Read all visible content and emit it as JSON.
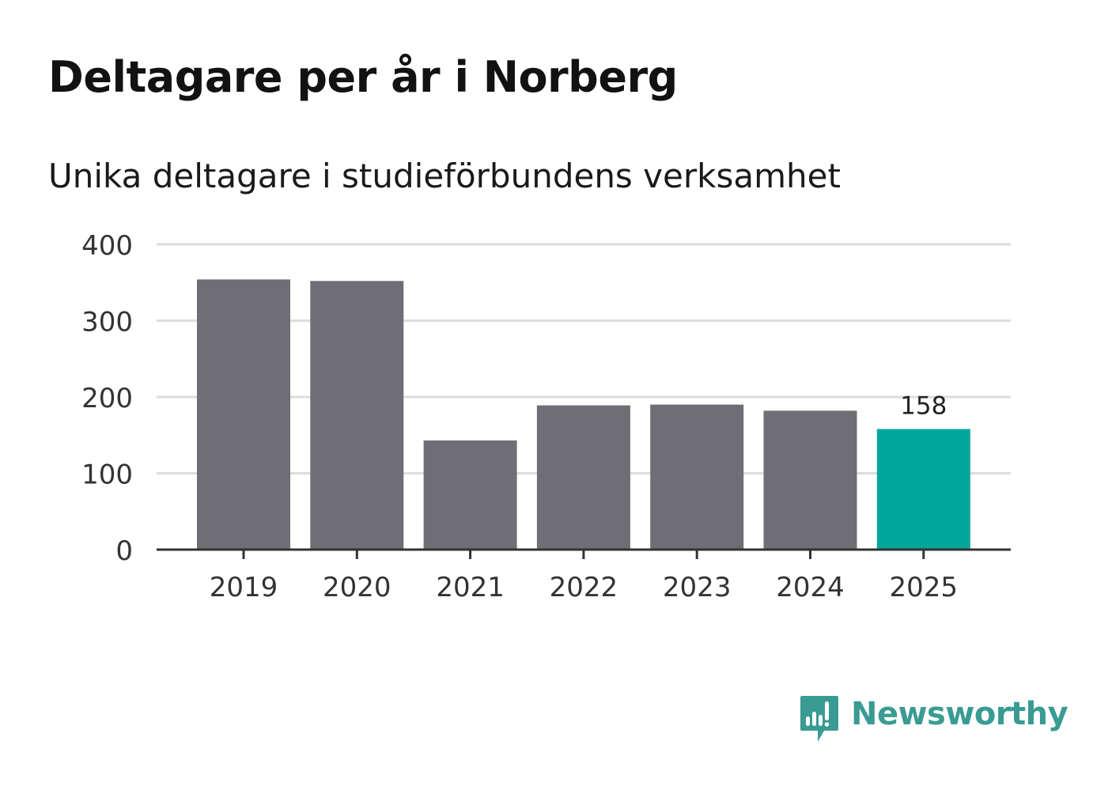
{
  "title": "Deltagare per år i Norberg",
  "subtitle": "Unika deltagare i studieförbundens verksamhet",
  "brand": {
    "name": "Newsworthy",
    "icon": "newsworthy-logo-icon",
    "color": "#3a9b93"
  },
  "chart_data": {
    "type": "bar",
    "title": "Deltagare per år i Norberg",
    "subtitle": "Unika deltagare i studieförbundens verksamhet",
    "xlabel": "",
    "ylabel": "",
    "categories": [
      "2019",
      "2020",
      "2021",
      "2022",
      "2023",
      "2024",
      "2025"
    ],
    "values": [
      354,
      352,
      143,
      189,
      190,
      182,
      158
    ],
    "ylim": [
      0,
      400
    ],
    "yticks": [
      0,
      100,
      200,
      300,
      400
    ],
    "ytick_labels": [
      "0",
      "100",
      "200",
      "300",
      "400"
    ],
    "grid": true,
    "highlight_index": 6,
    "data_labels": [
      {
        "index": 6,
        "text": "158"
      }
    ],
    "colors": {
      "bar": "#6f6e75",
      "highlight": "#00a69a",
      "grid": "#dddddd",
      "axis": "#333333",
      "tick_text": "#333333",
      "label_text": "#222222"
    }
  }
}
